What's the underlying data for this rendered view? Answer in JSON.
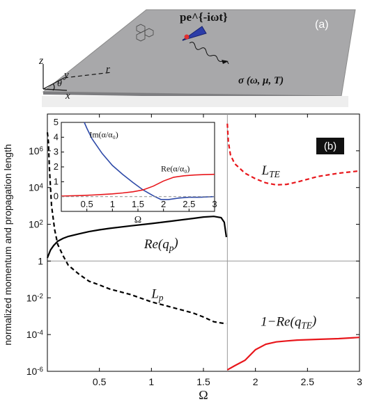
{
  "panel_a": {
    "label": "(a)",
    "dipole": "pe^{-iωt}",
    "conductivity": "σ (ω, μ, T)",
    "axis_z": "z",
    "axis_y": "y",
    "axis_x": "x",
    "angle": "θ",
    "radius": "r"
  },
  "chart_data": [
    {
      "type": "line",
      "panel_label": "(b)",
      "xlabel": "Ω",
      "ylabel": "normalized momentum and propagation length",
      "yscale": "log",
      "xlim": [
        0,
        3
      ],
      "ylim": [
        1e-06,
        100000000.0
      ],
      "x_ticks": [
        "0.5",
        "1",
        "1.5",
        "2",
        "2.5",
        "3"
      ],
      "y_ticks": [
        "10^6",
        "10^4",
        "10^2",
        "1",
        "10^-2",
        "10^-4",
        "10^-6"
      ],
      "series": [
        {
          "name": "Re(q_p)",
          "color": "#000000",
          "style": "solid",
          "x": [
            0.0,
            0.03,
            0.06,
            0.1,
            0.15,
            0.2,
            0.3,
            0.4,
            0.5,
            0.6,
            0.8,
            1.0,
            1.2,
            1.4,
            1.5,
            1.6,
            1.67,
            1.7,
            1.72
          ],
          "y": [
            1.5,
            4,
            7,
            12,
            17,
            22,
            30,
            40,
            50,
            60,
            82,
            110,
            150,
            210,
            250,
            270,
            230,
            130,
            20
          ]
        },
        {
          "name": "L_p",
          "color": "#000000",
          "style": "dashed",
          "x": [
            0.0,
            0.01,
            0.02,
            0.04,
            0.07,
            0.1,
            0.15,
            0.2,
            0.3,
            0.4,
            0.5,
            0.6,
            0.8,
            1.0,
            1.2,
            1.4,
            1.5,
            1.6,
            1.7,
            1.72
          ],
          "y": [
            10000000.0,
            3000000.0,
            100000.0,
            1000,
            50,
            8,
            2,
            0.6,
            0.2,
            0.08,
            0.05,
            0.03,
            0.015,
            0.006,
            0.003,
            0.0015,
            0.0009,
            0.0005,
            0.0004,
            0.0004
          ]
        },
        {
          "name": "L_TE",
          "color": "#e8161b",
          "style": "dashed",
          "x": [
            1.73,
            1.74,
            1.76,
            1.8,
            1.9,
            2.0,
            2.1,
            2.2,
            2.3,
            2.4,
            2.6,
            2.8,
            3.0
          ],
          "y": [
            30000000.0,
            3000000.0,
            600000.0,
            200000.0,
            60000.0,
            30000.0,
            18000.0,
            14000.0,
            15000.0,
            20000.0,
            40000.0,
            60000.0,
            80000.0
          ]
        },
        {
          "name": "1−Re(q_TE)",
          "color": "#e8161b",
          "style": "solid",
          "x": [
            1.73,
            1.8,
            1.9,
            2.0,
            2.1,
            2.2,
            2.3,
            2.4,
            2.6,
            2.8,
            3.0
          ],
          "y": [
            1.2e-06,
            2e-06,
            4e-06,
            1.5e-05,
            3e-05,
            4e-05,
            4.5e-05,
            5e-05,
            5.5e-05,
            6e-05,
            7e-05
          ]
        }
      ],
      "annotations": [
        {
          "text": "Re(q_p)",
          "x": 0.93,
          "y": 5
        },
        {
          "text": "L_p",
          "x": 1.0,
          "y": 0.01
        },
        {
          "text": "L_TE",
          "x": 2.06,
          "y": 50000.0
        },
        {
          "text": "1−Re(q_TE)",
          "x": 2.05,
          "y": 0.0003
        }
      ],
      "reference_lines": {
        "horizontal_y": 1,
        "vertical_x": 1.73
      }
    },
    {
      "type": "line",
      "xlabel": "Ω",
      "xlim": [
        0,
        3
      ],
      "ylim": [
        -1,
        5
      ],
      "x_ticks": [
        "0.5",
        "1",
        "1.5",
        "2",
        "2.5",
        "3"
      ],
      "y_ticks": [
        "0",
        "1",
        "2",
        "3",
        "4",
        "5"
      ],
      "series": [
        {
          "name": "Im(α/α₀)",
          "color": "#2e4aa8",
          "x": [
            0.45,
            0.5,
            0.6,
            0.8,
            1.0,
            1.2,
            1.4,
            1.6,
            1.8,
            1.95,
            2.1,
            2.3,
            2.5,
            2.7,
            3.0
          ],
          "y": [
            5.0,
            4.6,
            3.9,
            2.9,
            2.1,
            1.5,
            0.95,
            0.45,
            0.05,
            -0.2,
            -0.2,
            -0.1,
            -0.05,
            -0.05,
            0.0
          ]
        },
        {
          "name": "Re(α/α₀)",
          "color": "#e8161b",
          "x": [
            0.0,
            0.2,
            0.4,
            0.6,
            0.8,
            1.0,
            1.2,
            1.4,
            1.6,
            1.8,
            2.0,
            2.2,
            2.4,
            2.6,
            2.8,
            3.0
          ],
          "y": [
            0.03,
            0.05,
            0.07,
            0.1,
            0.14,
            0.18,
            0.24,
            0.32,
            0.45,
            0.7,
            1.05,
            1.3,
            1.4,
            1.45,
            1.48,
            1.5
          ]
        },
        {
          "name": "zero",
          "color": "#8a8a8a",
          "style": "dashed",
          "x": [
            0.0,
            3.0
          ],
          "y": [
            0,
            0
          ]
        }
      ],
      "annotations": [
        {
          "text": "Im(α/α₀)",
          "x": 0.55,
          "y": 4.0
        },
        {
          "text": "Re(α/α₀)",
          "x": 1.95,
          "y": 1.7
        }
      ]
    }
  ]
}
